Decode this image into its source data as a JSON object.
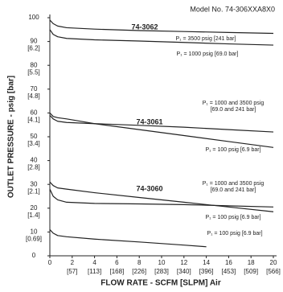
{
  "chart_data": {
    "type": "line",
    "title": "Model No. 74-306XXA8X0",
    "xlabel": "FLOW RATE - SCFM [SLPM] Air",
    "ylabel": "OUTLET PRESSURE - psig [bar]",
    "xlim": [
      0,
      20
    ],
    "ylim": [
      0,
      100
    ],
    "xticks": [
      0,
      {
        "value": 2,
        "label": "2",
        "secondary": "[57]"
      },
      {
        "value": 4,
        "label": "4",
        "secondary": "[113]"
      },
      {
        "value": 6,
        "label": "6",
        "secondary": "[168]"
      },
      {
        "value": 8,
        "label": "8",
        "secondary": "[226]"
      },
      {
        "value": 10,
        "label": "10",
        "secondary": "[283]"
      },
      {
        "value": 12,
        "label": "12",
        "secondary": "[340]"
      },
      {
        "value": 14,
        "label": "14",
        "secondary": "[396]"
      },
      {
        "value": 16,
        "label": "16",
        "secondary": "[453]"
      },
      {
        "value": 18,
        "label": "18",
        "secondary": "[509]"
      },
      {
        "value": 20,
        "label": "20",
        "secondary": "[566]"
      }
    ],
    "yticks": [
      0,
      {
        "value": 10,
        "label": "10",
        "secondary": "[0.69]"
      },
      {
        "value": 20,
        "label": "20",
        "secondary": "[1.4]"
      },
      {
        "value": 30,
        "label": "30",
        "secondary": "[2.1]"
      },
      {
        "value": 40,
        "label": "40",
        "secondary": "[2.8]"
      },
      {
        "value": 50,
        "label": "50",
        "secondary": "[3.4]"
      },
      {
        "value": 60,
        "label": "60",
        "secondary": "[4.1]"
      },
      {
        "value": 70,
        "label": "70",
        "secondary": "[4.8]"
      },
      {
        "value": 80,
        "label": "80",
        "secondary": "[5.5]"
      },
      {
        "value": 90,
        "label": "90",
        "secondary": "[6.2]"
      },
      100
    ],
    "grid": false,
    "annotations": [
      "74-3062",
      "74-3061",
      "74-3060"
    ],
    "series": [
      {
        "name": "P₁ = 3500 psig [241 bar]",
        "color": "#222222",
        "x": [
          0,
          0.3,
          0.7,
          1.5,
          4,
          8,
          12,
          16,
          20
        ],
        "values": [
          99,
          97.5,
          96.5,
          95.8,
          95.2,
          94.6,
          94.2,
          93.8,
          93.4
        ]
      },
      {
        "name": "P₁ = 1000 psig [69.0 bar]",
        "color": "#222222",
        "x": [
          0,
          0.3,
          0.7,
          1.5,
          4,
          8,
          12,
          16,
          20
        ],
        "values": [
          95,
          93,
          92,
          91.3,
          90.7,
          90.2,
          89.6,
          89,
          88.5
        ]
      },
      {
        "name": "P₁ = 1000 and 3500 psig\n[69.0 and 241 bar]",
        "color": "#222222",
        "x": [
          0,
          0.3,
          0.7,
          1.5,
          4,
          8,
          12,
          16,
          20
        ],
        "values": [
          59,
          57.5,
          56.5,
          56,
          55.5,
          54.8,
          54,
          53,
          52
        ]
      },
      {
        "name": "P₁ = 100 psig [6.9 bar]",
        "color": "#222222",
        "x": [
          0,
          0.3,
          0.7,
          1.5,
          4,
          8,
          12,
          16,
          20
        ],
        "values": [
          60,
          58.5,
          58,
          57.5,
          55.5,
          53,
          50.5,
          48,
          45.5
        ]
      },
      {
        "name": "P₁ = 1000 and 3500 psig\n[69.0 and 241 bar]",
        "color": "#222222",
        "x": [
          0,
          0.3,
          0.7,
          1.5,
          4,
          8,
          12,
          16,
          20
        ],
        "values": [
          31,
          29.5,
          28.5,
          28,
          26.5,
          24.5,
          22.5,
          20.5,
          18.5
        ]
      },
      {
        "name": "P₁ = 100 psig [6.9 bar]",
        "color": "#222222",
        "x": [
          0,
          0.3,
          0.7,
          1.5,
          4,
          8,
          12,
          16,
          20
        ],
        "values": [
          28,
          25,
          23.5,
          22.5,
          22,
          21.8,
          21.5,
          21,
          20.5
        ]
      },
      {
        "name": "P₁ = 100 psig [6.9 bar]",
        "color": "#222222",
        "x": [
          0,
          0.3,
          0.7,
          1.5,
          4,
          8,
          12,
          14
        ],
        "values": [
          11,
          9.5,
          8.5,
          8,
          7,
          5.8,
          4.5,
          3.8
        ]
      }
    ]
  }
}
